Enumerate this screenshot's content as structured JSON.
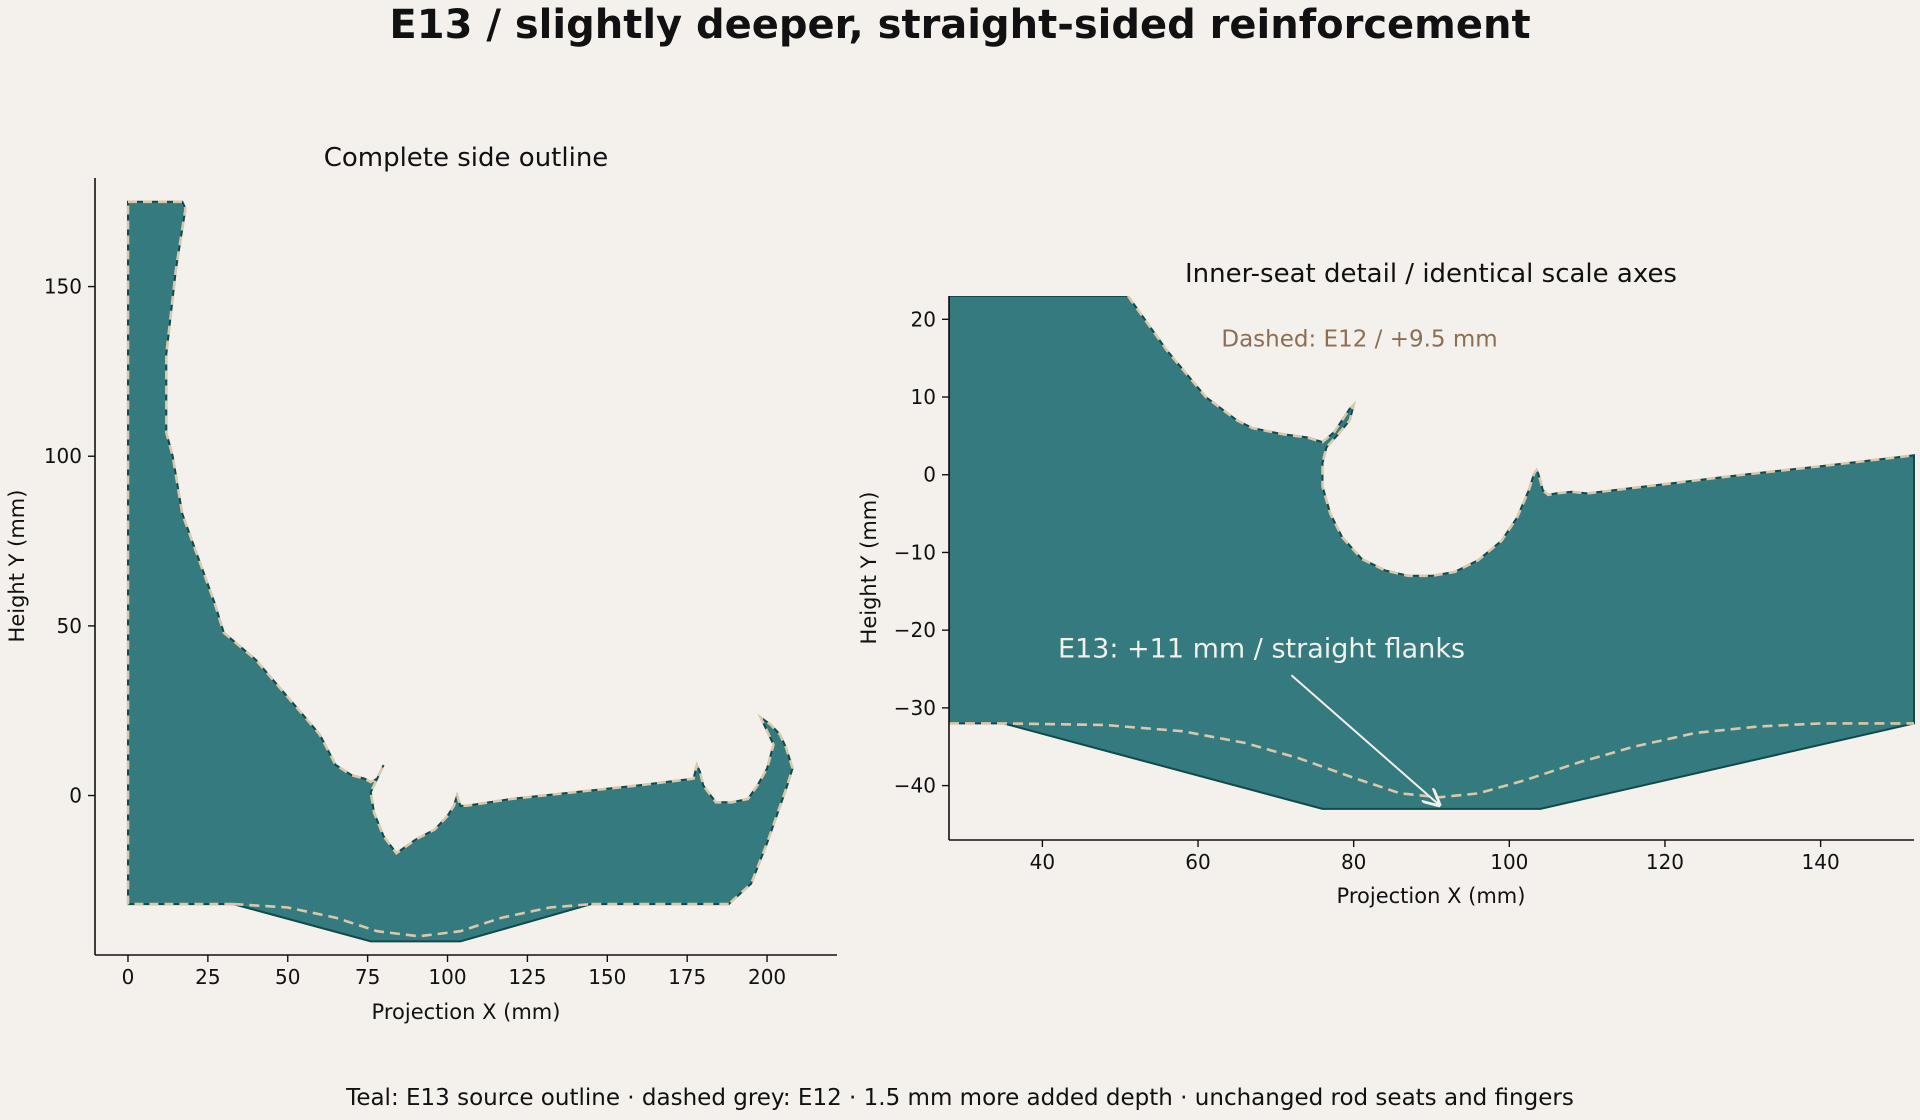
{
  "title": "E13 / slightly deeper, straight-sided reinforcement",
  "caption": "Teal: E13 source outline · dashed grey: E12 · 1.5 mm more added depth · unchanged rod seats and fingers",
  "colors": {
    "background": "#f4f1ec",
    "e13_fill": "#347a7e",
    "e13_edge": "#0f4a4c",
    "e12_dash": "#d9c8aa",
    "dashed_note": "#8a6f55",
    "e13_note": "#f2f0ea"
  },
  "chart_data": [
    {
      "type": "area",
      "title": "Complete side outline",
      "xlabel": "Projection X (mm)",
      "ylabel": "Height Y (mm)",
      "xlim": [
        -5,
        215
      ],
      "ylim": [
        -47,
        182
      ],
      "xticks": [
        0,
        25,
        50,
        75,
        100,
        125,
        150,
        175,
        200
      ],
      "yticks": [
        0,
        50,
        100,
        150
      ],
      "tick_labels_x": [
        "0",
        "25",
        "50",
        "75",
        "100",
        "125",
        "150",
        "175",
        "200"
      ],
      "tick_labels_y": [
        "0",
        "50",
        "100",
        "150"
      ],
      "grid": false,
      "series": [
        {
          "name": "E13",
          "x": [
            0,
            17,
            18,
            15,
            12,
            12,
            14,
            17,
            22,
            27,
            30,
            40,
            50,
            60,
            65,
            70,
            74,
            76,
            78,
            80,
            79,
            76,
            77,
            80,
            84,
            90,
            96,
            100,
            102,
            103,
            104,
            106,
            120,
            140,
            160,
            177,
            178,
            179,
            180,
            184,
            189,
            194,
            197,
            200,
            202,
            200,
            198,
            201,
            204,
            206,
            208,
            206,
            200,
            195,
            188,
            145,
            104,
            76,
            33,
            0,
            0
          ],
          "y": [
            175,
            175,
            173,
            155,
            130,
            107,
            100,
            83,
            70,
            57,
            48,
            40,
            29,
            18,
            9,
            6,
            5,
            4,
            5,
            9,
            7,
            1,
            -5,
            -12,
            -17,
            -13,
            -10,
            -6,
            -3,
            0,
            -3,
            -3,
            -1,
            1,
            3,
            5,
            9,
            7,
            3,
            -2,
            -2,
            -1,
            3,
            8,
            15,
            19,
            23,
            21,
            18,
            14,
            8,
            2,
            -14,
            -26,
            -32,
            -32,
            -43,
            -43,
            -32,
            -32,
            175
          ]
        },
        {
          "name": "E12",
          "x": [
            33,
            50,
            65,
            78,
            91,
            104,
            117,
            132,
            145
          ],
          "y": [
            -32,
            -33,
            -36,
            -40,
            -41.5,
            -40,
            -36,
            -33,
            -32
          ]
        }
      ]
    },
    {
      "type": "area",
      "title": "Inner-seat detail / identical scale axes",
      "xlabel": "Projection X (mm)",
      "ylabel": "Height Y (mm)",
      "xlim": [
        28,
        152
      ],
      "ylim": [
        -47,
        23
      ],
      "xticks": [
        40,
        60,
        80,
        100,
        120,
        140
      ],
      "yticks": [
        20,
        10,
        0,
        -10,
        -20,
        -30,
        -40
      ],
      "tick_labels_x": [
        "40",
        "60",
        "80",
        "100",
        "120",
        "140"
      ],
      "tick_labels_y": [
        "20",
        "10",
        "0",
        "−10",
        "−20",
        "−30",
        "−40"
      ],
      "grid": false,
      "series": [
        {
          "name": "E13",
          "x": [
            28,
            51,
            56,
            61,
            65,
            67,
            71,
            74,
            76,
            77.5,
            78.5,
            79.5,
            80,
            79.5,
            78,
            76.5,
            76,
            76,
            77,
            78.5,
            81,
            84,
            87,
            90,
            93,
            96,
            99,
            101,
            102.5,
            103.2,
            103.5,
            103.7,
            104,
            104.3,
            105,
            106,
            108,
            110,
            115,
            120,
            130,
            140,
            152,
            152,
            104,
            76,
            35,
            28,
            28
          ],
          "y": [
            23,
            23,
            16,
            10,
            7,
            6,
            5.2,
            4.8,
            4.2,
            5.5,
            7,
            8.5,
            9,
            7,
            5.2,
            3.5,
            1.5,
            -1.5,
            -5,
            -8,
            -10.8,
            -12.3,
            -13,
            -13,
            -12.5,
            -11,
            -8.5,
            -5.5,
            -2,
            0.2,
            0.6,
            0.2,
            -0.8,
            -2,
            -2.6,
            -2.4,
            -2.2,
            -2.4,
            -1.8,
            -1.2,
            0,
            1.1,
            2.5,
            -32,
            -43,
            -43,
            -32,
            -32,
            23
          ]
        },
        {
          "name": "E12",
          "x": [
            28,
            35,
            48,
            58,
            66,
            73,
            80,
            86,
            91,
            96,
            102,
            109,
            116,
            124,
            132,
            140,
            146,
            152
          ],
          "y": [
            -32,
            -32,
            -32.2,
            -33,
            -34.5,
            -36.5,
            -39,
            -41,
            -41.5,
            -41,
            -39.3,
            -37,
            -35,
            -33.2,
            -32.4,
            -32,
            -32,
            -32
          ]
        }
      ],
      "annotations": [
        {
          "text": "Dashed: E12 / +9.5 mm",
          "x": 63,
          "y": 16.5
        },
        {
          "text": "E13: +11 mm / straight flanks",
          "x": 42,
          "y": -23.5,
          "arrow_to_x": 91,
          "arrow_to_y": -42.5
        }
      ]
    }
  ]
}
